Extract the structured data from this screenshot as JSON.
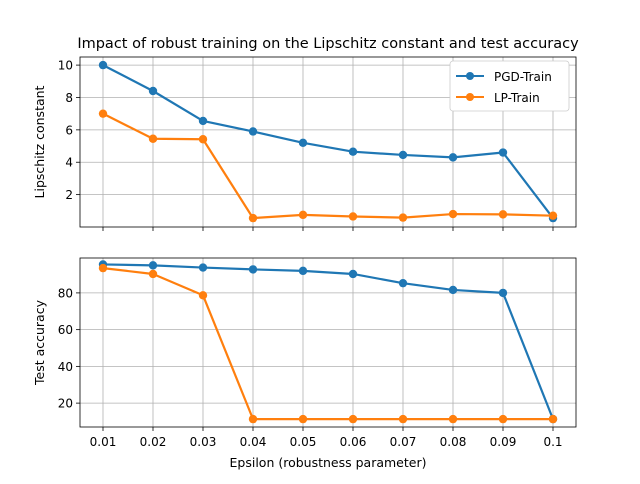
{
  "figure_title": "Impact of robust training on the Lipschitz constant and test accuracy",
  "colors": {
    "pgd": "#1f77b4",
    "lp": "#ff7f0e",
    "grid": "#b0b0b0"
  },
  "chart_data": [
    {
      "type": "line",
      "title": "Impact of robust training on the Lipschitz constant and test accuracy",
      "xlabel": "",
      "ylabel": "Lipschitz constant",
      "x": [
        0.01,
        0.02,
        0.03,
        0.04,
        0.05,
        0.06,
        0.07,
        0.08,
        0.09,
        0.1
      ],
      "xticklabels": [],
      "yticks": [
        2,
        4,
        6,
        8,
        10
      ],
      "ylim": [
        0,
        10.5
      ],
      "grid": true,
      "legend": {
        "placement": "upper-right",
        "entries": [
          "PGD-Train",
          "LP-Train"
        ]
      },
      "series": [
        {
          "name": "PGD-Train",
          "color": "#1f77b4",
          "values": [
            10.0,
            8.4,
            6.55,
            5.9,
            5.2,
            4.65,
            4.45,
            4.3,
            4.6,
            0.55
          ]
        },
        {
          "name": "LP-Train",
          "color": "#ff7f0e",
          "values": [
            7.0,
            5.45,
            5.42,
            0.55,
            0.75,
            0.65,
            0.58,
            0.8,
            0.78,
            0.7
          ]
        }
      ]
    },
    {
      "type": "line",
      "title": "",
      "xlabel": "Epsilon (robustness parameter)",
      "ylabel": "Test accuracy",
      "x": [
        0.01,
        0.02,
        0.03,
        0.04,
        0.05,
        0.06,
        0.07,
        0.08,
        0.09,
        0.1
      ],
      "xticklabels": [
        "0.01",
        "0.02",
        "0.03",
        "0.04",
        "0.05",
        "0.06",
        "0.07",
        "0.08",
        "0.09",
        "0.1"
      ],
      "yticks": [
        20,
        40,
        60,
        80
      ],
      "ylim": [
        7,
        99
      ],
      "grid": true,
      "series": [
        {
          "name": "PGD-Train",
          "color": "#1f77b4",
          "values": [
            95.5,
            95.0,
            93.8,
            92.8,
            92.0,
            90.3,
            85.3,
            81.6,
            80.0,
            11.3
          ]
        },
        {
          "name": "LP-Train",
          "color": "#ff7f0e",
          "values": [
            93.5,
            90.3,
            78.7,
            11.3,
            11.3,
            11.3,
            11.3,
            11.3,
            11.3,
            11.3
          ]
        }
      ]
    }
  ]
}
